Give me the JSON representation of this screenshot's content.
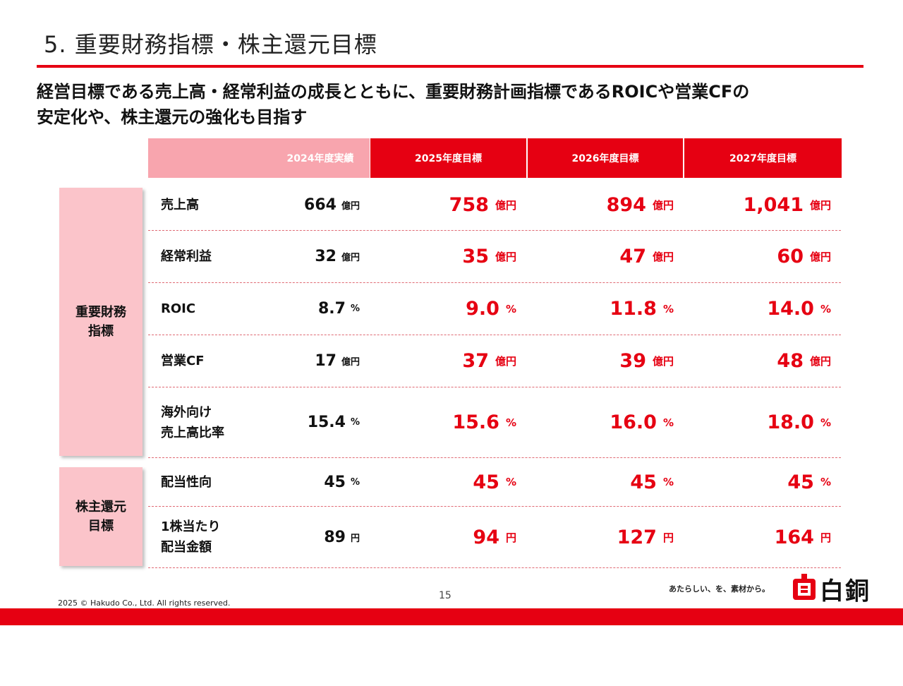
{
  "slide": {
    "title": "5.  重要財務指標・株主還元目標",
    "lead_line1": "経営目標である売上高・経常利益の成長とともに、重要財務計画指標であるROICや営業CFの",
    "lead_line2": "安定化や、株主還元の強化も目指す"
  },
  "table": {
    "headers": [
      "2024年度実績",
      "2025年度目標",
      "2026年度目標",
      "2027年度目標"
    ],
    "categories": [
      {
        "label_line1": "重要財務",
        "label_line2": "指標"
      },
      {
        "label_line1": "株主還元",
        "label_line2": "目標"
      }
    ],
    "rows": [
      {
        "label_line1": "売上高",
        "label_line2": "",
        "actual": "664",
        "actual_unit": "億円",
        "t2025": "758",
        "t2026": "894",
        "t2027": "1,041",
        "unit": "億円"
      },
      {
        "label_line1": "経常利益",
        "label_line2": "",
        "actual": "32",
        "actual_unit": "億円",
        "t2025": "35",
        "t2026": "47",
        "t2027": "60",
        "unit": "億円"
      },
      {
        "label_line1": "ROIC",
        "label_line2": "",
        "actual": "8.7",
        "actual_unit": "%",
        "t2025": "9.0",
        "t2026": "11.8",
        "t2027": "14.0",
        "unit": "%"
      },
      {
        "label_line1": "営業CF",
        "label_line2": "",
        "actual": "17",
        "actual_unit": "億円",
        "t2025": "37",
        "t2026": "39",
        "t2027": "48",
        "unit": "億円"
      },
      {
        "label_line1": "海外向け",
        "label_line2": "売上高比率",
        "actual": "15.4",
        "actual_unit": "%",
        "t2025": "15.6",
        "t2026": "16.0",
        "t2027": "18.0",
        "unit": "%"
      },
      {
        "label_line1": "配当性向",
        "label_line2": "",
        "actual": "45",
        "actual_unit": "%",
        "t2025": "45",
        "t2026": "45",
        "t2027": "45",
        "unit": "%"
      },
      {
        "label_line1": "1株当たり",
        "label_line2": "配当金額",
        "actual": "89",
        "actual_unit": "円",
        "t2025": "94",
        "t2026": "127",
        "t2027": "164",
        "unit": "円"
      }
    ]
  },
  "footer": {
    "copyright": "2025 © Hakudo Co., Ltd. All rights reserved.",
    "page_number": "15",
    "tagline": "あたらしい、を、素材から。",
    "logo_text": "白銅"
  },
  "colors": {
    "accent": "#e60012",
    "pink_header": "#f8a5ae",
    "pink_category": "#fbc4ca"
  }
}
